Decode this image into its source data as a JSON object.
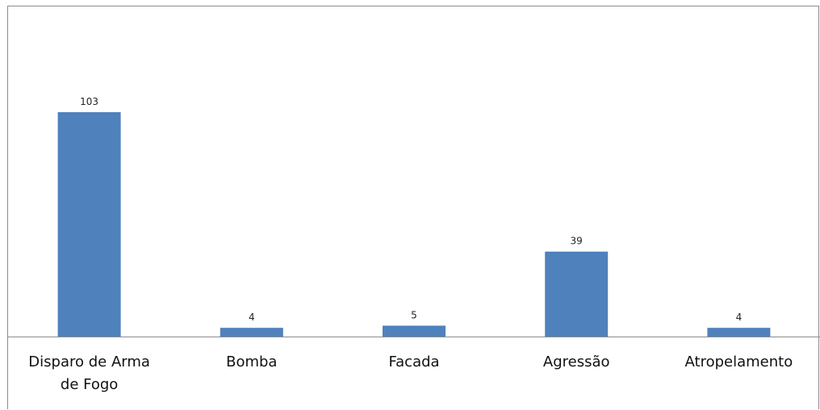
{
  "chart_data": {
    "type": "bar",
    "categories": [
      "Disparo de Arma de Fogo",
      "Bomba",
      "Facada",
      "Agressão",
      "Atropelamento"
    ],
    "category_lines": [
      [
        "Disparo de Arma",
        "de Fogo"
      ],
      [
        "Bomba"
      ],
      [
        "Facada"
      ],
      [
        "Agressão"
      ],
      [
        "Atropelamento"
      ]
    ],
    "values": [
      103,
      4,
      5,
      39,
      4
    ],
    "data_labels": [
      "103",
      "4",
      "5",
      "39",
      "4"
    ],
    "title": "",
    "xlabel": "",
    "ylabel": "",
    "ylim": [
      0,
      103
    ],
    "grid": false,
    "legend": "none",
    "bar_color": "#4f81bd"
  }
}
